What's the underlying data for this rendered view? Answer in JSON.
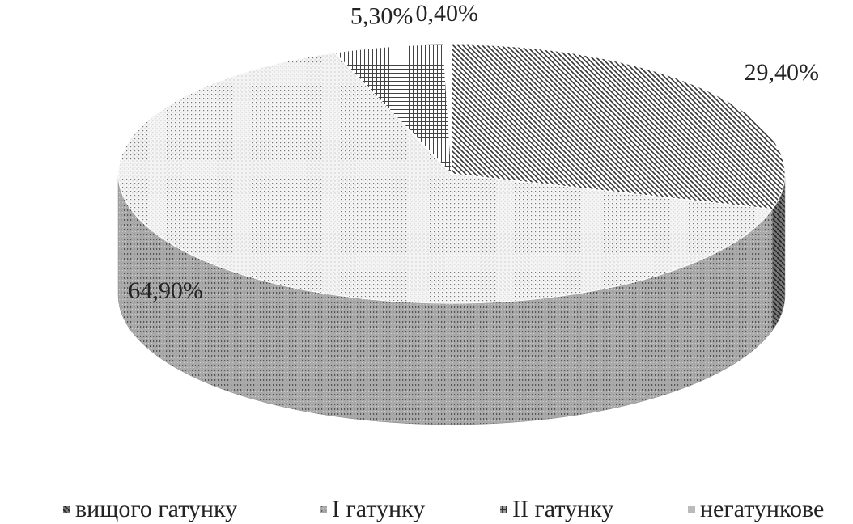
{
  "chart_data": {
    "type": "pie",
    "categories": [
      "вищого гатунку",
      "І гатунку",
      "ІІ гатунку",
      "негатункове"
    ],
    "values": [
      29.4,
      64.9,
      5.3,
      0.4
    ],
    "value_labels": [
      "29,40%",
      "64,90%",
      "5,30%",
      "0,40%"
    ],
    "legend": "bottom"
  }
}
